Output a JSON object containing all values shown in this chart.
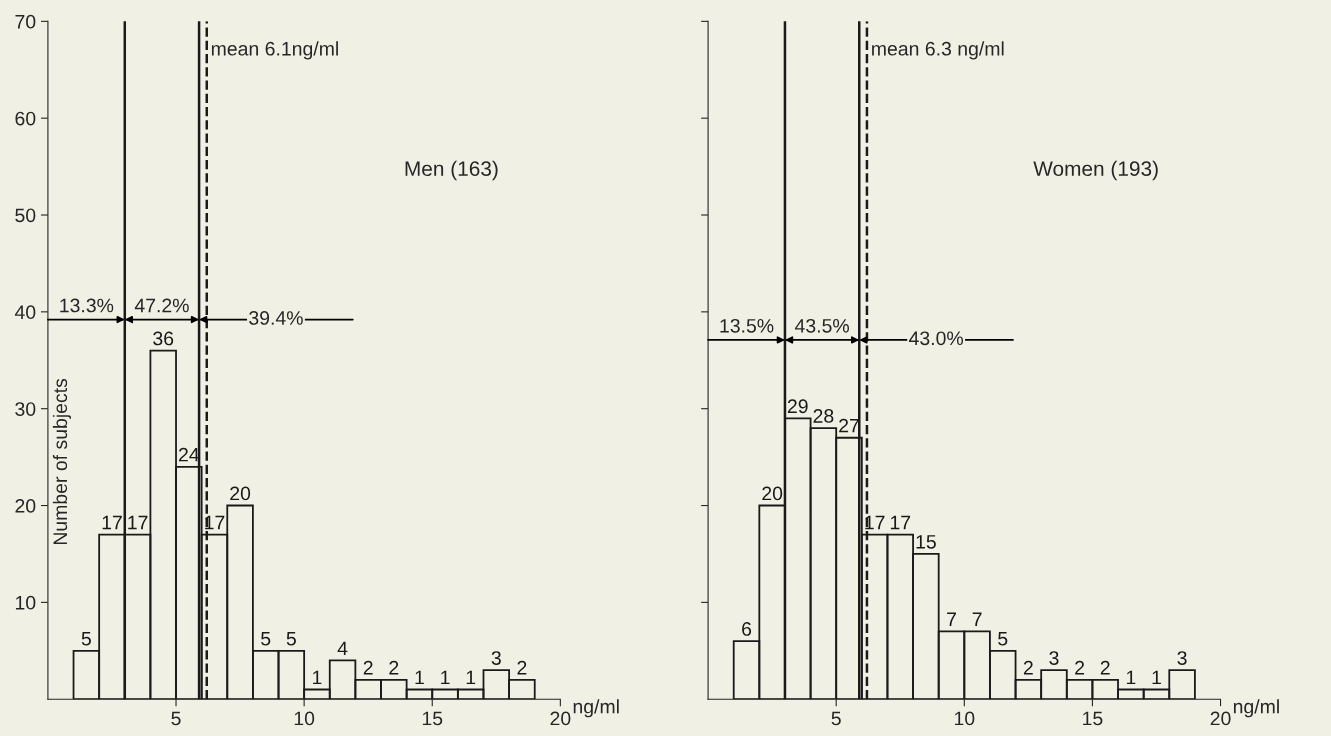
{
  "chart_data": [
    {
      "type": "histogram",
      "title": "Men (163)",
      "xlabel": "ng/ml",
      "ylabel": "Number of subjects",
      "color": "#1a1a1a",
      "bins": [
        1,
        2,
        3,
        4,
        5,
        6,
        7,
        8,
        9,
        10,
        11,
        12,
        13,
        14,
        15,
        16,
        17,
        18,
        19
      ],
      "values": [
        5,
        17,
        17,
        36,
        24,
        17,
        20,
        5,
        5,
        1,
        4,
        2,
        2,
        1,
        1,
        1,
        3,
        2
      ],
      "data_labels": true,
      "xlim": [
        0,
        20
      ],
      "xticks": [
        5,
        10,
        15,
        20
      ],
      "ylim": [
        0,
        70
      ],
      "yticks": [
        10,
        20,
        30,
        40,
        50,
        60,
        70
      ],
      "ref_lines": [
        {
          "axis": "x",
          "value": 3,
          "line_style": "solid",
          "color": "#1a1a1a"
        },
        {
          "axis": "x",
          "value": 5.9,
          "line_style": "solid",
          "color": "#1a1a1a"
        },
        {
          "axis": "x",
          "value": 6.2,
          "line_style": "dashed",
          "color": "#1a1a1a",
          "label": "mean 6.1ng/ml"
        }
      ],
      "annotations": [
        "13.3%",
        "47.2%",
        "39.4%"
      ]
    },
    {
      "type": "histogram",
      "title": "Women (193)",
      "xlabel": "ng/ml",
      "color": "#1a1a1a",
      "bins": [
        1,
        2,
        3,
        4,
        5,
        6,
        7,
        8,
        9,
        10,
        11,
        12,
        13,
        14,
        15,
        16,
        17,
        18,
        19
      ],
      "values": [
        6,
        20,
        29,
        28,
        27,
        17,
        17,
        15,
        7,
        7,
        5,
        2,
        3,
        2,
        2,
        1,
        1,
        3
      ],
      "data_labels": true,
      "xlim": [
        0,
        20
      ],
      "xticks": [
        5,
        10,
        15,
        20
      ],
      "ylim": [
        0,
        70
      ],
      "yticks": [
        10,
        20,
        30,
        40,
        50,
        60,
        70
      ],
      "tick_labels": "x",
      "ref_lines": [
        {
          "axis": "x",
          "value": 3,
          "line_style": "solid",
          "color": "#1a1a1a"
        },
        {
          "axis": "x",
          "value": 5.9,
          "line_style": "solid",
          "color": "#1a1a1a"
        },
        {
          "axis": "x",
          "value": 6.2,
          "line_style": "dashed",
          "color": "#1a1a1a",
          "label": "mean 6.3 ng/ml"
        }
      ],
      "annotations": [
        "13.5%",
        "43.5%",
        "43.0%"
      ]
    }
  ]
}
